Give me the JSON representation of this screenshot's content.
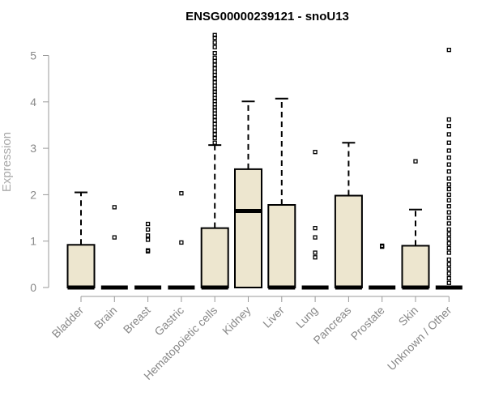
{
  "chart_data": {
    "type": "boxplot",
    "title": "ENSG00000239121 - snoU13",
    "xlabel": "",
    "ylabel": "Expression",
    "ylim": [
      0,
      5.5
    ],
    "yticks": [
      0,
      1,
      2,
      3,
      4,
      5
    ],
    "grid": false,
    "box_fill": "#ede6cf",
    "categories": [
      "Bladder",
      "Brain",
      "Breast",
      "Gastric",
      "Hematopoietic cells",
      "Kidney",
      "Liver",
      "Lung",
      "Pancreas",
      "Prostate",
      "Skin",
      "Unknown / Other"
    ],
    "series": [
      {
        "category": "Bladder",
        "q1": 0,
        "median": 0,
        "q3": 0.92,
        "whisker_low": 0,
        "whisker_high": 2.05,
        "outliers": []
      },
      {
        "category": "Brain",
        "q1": 0,
        "median": 0,
        "q3": 0,
        "whisker_low": 0,
        "whisker_high": 0,
        "outliers": [
          1.08,
          1.73
        ]
      },
      {
        "category": "Breast",
        "q1": 0,
        "median": 0,
        "q3": 0,
        "whisker_low": 0,
        "whisker_high": 0,
        "outliers": [
          0.78,
          0.8,
          1.03,
          1.12,
          1.25,
          1.37
        ]
      },
      {
        "category": "Gastric",
        "q1": 0,
        "median": 0,
        "q3": 0,
        "whisker_low": 0,
        "whisker_high": 0,
        "outliers": [
          0.97,
          2.03
        ]
      },
      {
        "category": "Hematopoietic cells",
        "q1": 0,
        "median": 0,
        "q3": 1.28,
        "whisker_low": 0,
        "whisker_high": 3.07,
        "outliers": [
          3.12,
          3.22,
          3.3,
          3.38,
          3.45,
          3.52,
          3.6,
          3.68,
          3.75,
          3.82,
          3.88,
          3.95,
          4.02,
          4.08,
          4.15,
          4.22,
          4.28,
          4.35,
          4.42,
          4.5,
          4.58,
          4.65,
          4.72,
          4.8,
          4.88,
          4.95,
          5.05,
          5.18,
          5.28,
          5.38,
          5.44
        ]
      },
      {
        "category": "Kidney",
        "q1": 0,
        "median": 1.65,
        "q3": 2.55,
        "whisker_low": 0,
        "whisker_high": 4.01,
        "outliers": []
      },
      {
        "category": "Liver",
        "q1": 0,
        "median": 0,
        "q3": 1.78,
        "whisker_low": 0,
        "whisker_high": 4.07,
        "outliers": []
      },
      {
        "category": "Lung",
        "q1": 0,
        "median": 0,
        "q3": 0,
        "whisker_low": 0,
        "whisker_high": 0,
        "outliers": [
          0.65,
          0.75,
          1.08,
          1.28,
          2.92
        ]
      },
      {
        "category": "Pancreas",
        "q1": 0,
        "median": 0,
        "q3": 1.98,
        "whisker_low": 0,
        "whisker_high": 3.12,
        "outliers": []
      },
      {
        "category": "Prostate",
        "q1": 0,
        "median": 0,
        "q3": 0,
        "whisker_low": 0,
        "whisker_high": 0,
        "outliers": [
          0.88,
          0.9
        ]
      },
      {
        "category": "Skin",
        "q1": 0,
        "median": 0,
        "q3": 0.9,
        "whisker_low": 0,
        "whisker_high": 1.68,
        "outliers": [
          2.72
        ]
      },
      {
        "category": "Unknown / Other",
        "q1": 0,
        "median": 0,
        "q3": 0,
        "whisker_low": 0,
        "whisker_high": 0,
        "outliers": [
          0.1,
          0.2,
          0.3,
          0.4,
          0.5,
          0.6,
          0.75,
          0.85,
          0.95,
          1.05,
          1.15,
          1.25,
          1.38,
          1.5,
          1.62,
          1.75,
          1.88,
          2.0,
          2.12,
          2.22,
          2.35,
          2.5,
          2.65,
          2.8,
          2.95,
          3.12,
          3.3,
          3.48,
          3.62,
          5.12
        ]
      }
    ]
  }
}
